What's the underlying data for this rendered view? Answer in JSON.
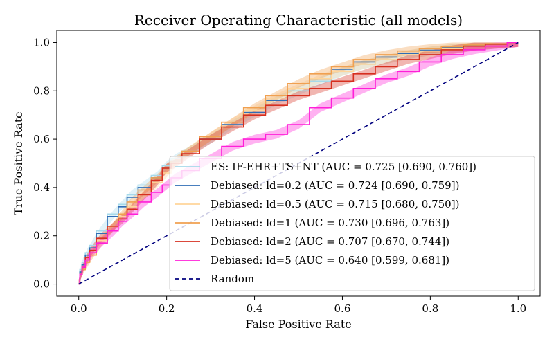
{
  "chart_data": {
    "type": "line",
    "title": "Receiver Operating Characteristic (all models)",
    "xlabel": "False Positive Rate",
    "ylabel": "True Positive Rate",
    "xlim": [
      -0.05,
      1.05
    ],
    "ylim": [
      -0.05,
      1.05
    ],
    "x_ticks": [
      "0.0",
      "0.2",
      "0.4",
      "0.6",
      "0.8",
      "1.0"
    ],
    "y_ticks": [
      "0.0",
      "0.2",
      "0.4",
      "0.6",
      "0.8",
      "1.0"
    ],
    "grid": false,
    "legend_position": "lower right",
    "series": [
      {
        "name": "ES: IF-EHR+TS+NT (AUC = 0.725 [0.690, 0.760])",
        "color": "#a6d9ea",
        "band": true,
        "x": [
          0,
          0.005,
          0.01,
          0.02,
          0.03,
          0.05,
          0.08,
          0.1,
          0.12,
          0.15,
          0.18,
          0.2,
          0.22,
          0.25,
          0.3,
          0.35,
          0.4,
          0.45,
          0.5,
          0.55,
          0.6,
          0.65,
          0.7,
          0.75,
          0.8,
          0.85,
          0.9,
          0.95,
          1.0
        ],
        "y": [
          0,
          0.06,
          0.09,
          0.13,
          0.16,
          0.22,
          0.29,
          0.33,
          0.37,
          0.41,
          0.45,
          0.49,
          0.52,
          0.55,
          0.6,
          0.66,
          0.71,
          0.76,
          0.8,
          0.84,
          0.88,
          0.91,
          0.93,
          0.95,
          0.965,
          0.975,
          0.985,
          0.993,
          1.0
        ]
      },
      {
        "name": "Debiased: ld=0.2 (AUC = 0.724 [0.690, 0.759])",
        "color": "#2f6db5",
        "band": false,
        "x": [
          0,
          0.005,
          0.01,
          0.02,
          0.03,
          0.05,
          0.08,
          0.1,
          0.12,
          0.15,
          0.18,
          0.2,
          0.22,
          0.25,
          0.3,
          0.35,
          0.4,
          0.45,
          0.5,
          0.55,
          0.6,
          0.65,
          0.7,
          0.75,
          0.8,
          0.85,
          0.9,
          0.95,
          1.0
        ],
        "y": [
          0,
          0.05,
          0.08,
          0.12,
          0.15,
          0.21,
          0.28,
          0.32,
          0.36,
          0.4,
          0.44,
          0.48,
          0.51,
          0.55,
          0.6,
          0.66,
          0.71,
          0.76,
          0.81,
          0.85,
          0.89,
          0.92,
          0.94,
          0.955,
          0.968,
          0.978,
          0.987,
          0.994,
          1.0
        ]
      },
      {
        "name": "Debiased: ld=0.5 (AUC = 0.715 [0.680, 0.750])",
        "color": "#ffd59a",
        "band": true,
        "x": [
          0,
          0.005,
          0.01,
          0.02,
          0.03,
          0.05,
          0.08,
          0.1,
          0.12,
          0.15,
          0.18,
          0.2,
          0.22,
          0.25,
          0.3,
          0.35,
          0.4,
          0.45,
          0.5,
          0.55,
          0.6,
          0.65,
          0.7,
          0.75,
          0.8,
          0.85,
          0.9,
          0.95,
          1.0
        ],
        "y": [
          0,
          0.04,
          0.07,
          0.1,
          0.13,
          0.18,
          0.24,
          0.28,
          0.32,
          0.37,
          0.42,
          0.46,
          0.5,
          0.55,
          0.61,
          0.67,
          0.72,
          0.77,
          0.81,
          0.85,
          0.88,
          0.91,
          0.93,
          0.95,
          0.965,
          0.975,
          0.985,
          0.993,
          1.0
        ]
      },
      {
        "name": "Debiased: ld=1 (AUC = 0.730 [0.696, 0.763])",
        "color": "#f0a050",
        "band": true,
        "x": [
          0,
          0.005,
          0.01,
          0.02,
          0.03,
          0.05,
          0.08,
          0.1,
          0.12,
          0.15,
          0.18,
          0.2,
          0.22,
          0.25,
          0.3,
          0.35,
          0.4,
          0.45,
          0.5,
          0.55,
          0.6,
          0.65,
          0.7,
          0.75,
          0.8,
          0.85,
          0.9,
          0.95,
          1.0
        ],
        "y": [
          0,
          0.04,
          0.06,
          0.09,
          0.12,
          0.17,
          0.24,
          0.29,
          0.34,
          0.39,
          0.44,
          0.48,
          0.51,
          0.55,
          0.61,
          0.67,
          0.73,
          0.78,
          0.83,
          0.87,
          0.9,
          0.93,
          0.95,
          0.965,
          0.975,
          0.983,
          0.99,
          0.995,
          1.0
        ]
      },
      {
        "name": "Debiased: ld=2 (AUC = 0.707 [0.670, 0.744])",
        "color": "#d62f1f",
        "band": true,
        "x": [
          0,
          0.005,
          0.01,
          0.02,
          0.03,
          0.05,
          0.08,
          0.1,
          0.12,
          0.15,
          0.18,
          0.2,
          0.22,
          0.25,
          0.3,
          0.35,
          0.4,
          0.45,
          0.5,
          0.55,
          0.6,
          0.65,
          0.7,
          0.75,
          0.8,
          0.85,
          0.9,
          0.95,
          1.0
        ],
        "y": [
          0,
          0.04,
          0.07,
          0.11,
          0.14,
          0.19,
          0.24,
          0.27,
          0.31,
          0.37,
          0.43,
          0.48,
          0.5,
          0.54,
          0.6,
          0.65,
          0.7,
          0.74,
          0.78,
          0.81,
          0.84,
          0.87,
          0.9,
          0.93,
          0.95,
          0.97,
          0.985,
          0.993,
          1.0
        ]
      },
      {
        "name": "Debiased: ld=5 (AUC = 0.640 [0.599, 0.681])",
        "color": "#ff1fd8",
        "band": true,
        "x": [
          0,
          0.005,
          0.01,
          0.02,
          0.03,
          0.05,
          0.08,
          0.1,
          0.12,
          0.15,
          0.18,
          0.2,
          0.22,
          0.25,
          0.3,
          0.35,
          0.4,
          0.45,
          0.5,
          0.55,
          0.6,
          0.65,
          0.7,
          0.75,
          0.8,
          0.85,
          0.9,
          0.95,
          1.0
        ],
        "y": [
          0,
          0.04,
          0.07,
          0.1,
          0.13,
          0.17,
          0.22,
          0.26,
          0.29,
          0.34,
          0.38,
          0.41,
          0.44,
          0.47,
          0.52,
          0.57,
          0.6,
          0.62,
          0.66,
          0.73,
          0.77,
          0.81,
          0.85,
          0.88,
          0.92,
          0.95,
          0.97,
          0.985,
          1.0
        ]
      },
      {
        "name": "Random",
        "color": "#00007f",
        "dashed": true,
        "band": false,
        "x": [
          0,
          1
        ],
        "y": [
          0,
          1
        ]
      }
    ]
  }
}
